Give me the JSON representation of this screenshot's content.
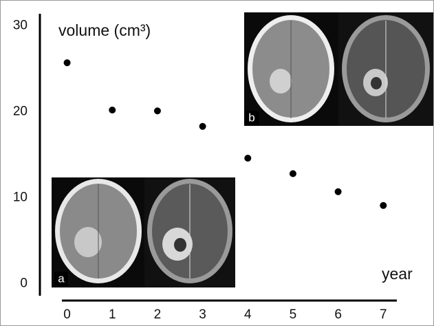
{
  "chart_data": {
    "type": "scatter",
    "y_label": "volume (cm³)",
    "x_label": "year",
    "x": [
      0,
      1,
      2,
      3,
      4,
      5,
      6,
      7
    ],
    "series": [
      {
        "color": "#000000",
        "values": [
          25.7,
          20.2,
          20.1,
          18.3,
          14.6,
          12.8,
          10.7,
          9.1
        ]
      }
    ],
    "xlim": [
      -0.1,
      7.3
    ],
    "xticks": [
      0,
      1,
      2,
      3,
      4,
      5,
      6,
      7
    ],
    "ylim": [
      -1.4,
      31.4
    ],
    "yticks": [
      0,
      10,
      20,
      30
    ],
    "grid": false,
    "inset_labels": [
      "a",
      "b"
    ]
  }
}
